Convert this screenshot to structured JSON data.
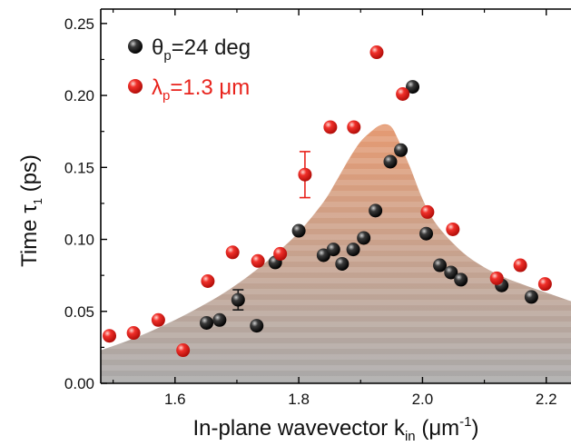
{
  "colors": {
    "black_series": "#1a1a1a",
    "red_series": "#e8231c",
    "legend_red_text": "#e8231c",
    "band_top": "#e59a72",
    "band_bottom": "#a9a9a9"
  },
  "chart_data": {
    "type": "scatter",
    "xlabel_main": "In-plane wavevector k",
    "xlabel_sub": "in",
    "xlabel_unit_open": " (μm",
    "xlabel_unit_sup": "-1",
    "xlabel_unit_close": ")",
    "ylabel_main": "Time τ",
    "ylabel_sub": "1",
    "ylabel_unit": " (ps)",
    "xlim": [
      1.48,
      2.24
    ],
    "ylim": [
      0.0,
      0.26
    ],
    "xticks": [
      1.6,
      1.8,
      2.0,
      2.2
    ],
    "xtick_labels": [
      "1.6",
      "1.8",
      "2.0",
      "2.2"
    ],
    "yticks": [
      0.0,
      0.05,
      0.1,
      0.15,
      0.2,
      0.25
    ],
    "ytick_labels": [
      "0.00",
      "0.05",
      "0.10",
      "0.15",
      "0.20",
      "0.25"
    ],
    "legend": {
      "placement": "top-left",
      "entries": [
        {
          "symbol": "θ",
          "sub": "p",
          "rest": "=24 deg",
          "color": "#1a1a1a"
        },
        {
          "symbol": "λ",
          "sub": "p",
          "rest": "=1.3 μm",
          "color": "#e8231c"
        }
      ]
    },
    "series": [
      {
        "color": "#1a1a1a",
        "points": [
          {
            "x": 1.651,
            "y": 0.042
          },
          {
            "x": 1.672,
            "y": 0.044
          },
          {
            "x": 1.702,
            "y": 0.058,
            "yerr": 0.007
          },
          {
            "x": 1.732,
            "y": 0.04
          },
          {
            "x": 1.762,
            "y": 0.084
          },
          {
            "x": 1.8,
            "y": 0.106
          },
          {
            "x": 1.84,
            "y": 0.089
          },
          {
            "x": 1.856,
            "y": 0.093
          },
          {
            "x": 1.87,
            "y": 0.083
          },
          {
            "x": 1.888,
            "y": 0.093
          },
          {
            "x": 1.905,
            "y": 0.101
          },
          {
            "x": 1.924,
            "y": 0.12
          },
          {
            "x": 1.948,
            "y": 0.154
          },
          {
            "x": 1.965,
            "y": 0.162
          },
          {
            "x": 1.984,
            "y": 0.206
          },
          {
            "x": 2.006,
            "y": 0.104
          },
          {
            "x": 2.028,
            "y": 0.082
          },
          {
            "x": 2.046,
            "y": 0.077
          },
          {
            "x": 2.062,
            "y": 0.072
          },
          {
            "x": 2.128,
            "y": 0.068
          },
          {
            "x": 2.176,
            "y": 0.06
          }
        ]
      },
      {
        "color": "#e8231c",
        "points": [
          {
            "x": 1.494,
            "y": 0.033
          },
          {
            "x": 1.533,
            "y": 0.035
          },
          {
            "x": 1.573,
            "y": 0.044
          },
          {
            "x": 1.613,
            "y": 0.023
          },
          {
            "x": 1.653,
            "y": 0.071
          },
          {
            "x": 1.693,
            "y": 0.091
          },
          {
            "x": 1.734,
            "y": 0.085
          },
          {
            "x": 1.77,
            "y": 0.09
          },
          {
            "x": 1.81,
            "y": 0.145,
            "yerr": 0.016
          },
          {
            "x": 1.851,
            "y": 0.178
          },
          {
            "x": 1.889,
            "y": 0.178
          },
          {
            "x": 1.926,
            "y": 0.23
          },
          {
            "x": 1.968,
            "y": 0.201
          },
          {
            "x": 2.008,
            "y": 0.119
          },
          {
            "x": 2.049,
            "y": 0.107
          },
          {
            "x": 2.12,
            "y": 0.073
          },
          {
            "x": 2.158,
            "y": 0.082
          },
          {
            "x": 2.198,
            "y": 0.069
          }
        ]
      }
    ],
    "band": {
      "x": [
        1.48,
        1.52,
        1.56,
        1.6,
        1.64,
        1.68,
        1.72,
        1.76,
        1.8,
        1.84,
        1.86,
        1.88,
        1.9,
        1.92,
        1.93,
        1.94,
        1.95,
        1.96,
        1.98,
        2.0,
        2.02,
        2.05,
        2.08,
        2.12,
        2.16,
        2.2,
        2.24
      ],
      "y": [
        0.023,
        0.029,
        0.036,
        0.044,
        0.053,
        0.063,
        0.075,
        0.089,
        0.105,
        0.126,
        0.14,
        0.155,
        0.168,
        0.176,
        0.179,
        0.18,
        0.178,
        0.17,
        0.15,
        0.128,
        0.112,
        0.097,
        0.086,
        0.076,
        0.069,
        0.063,
        0.057
      ]
    }
  }
}
